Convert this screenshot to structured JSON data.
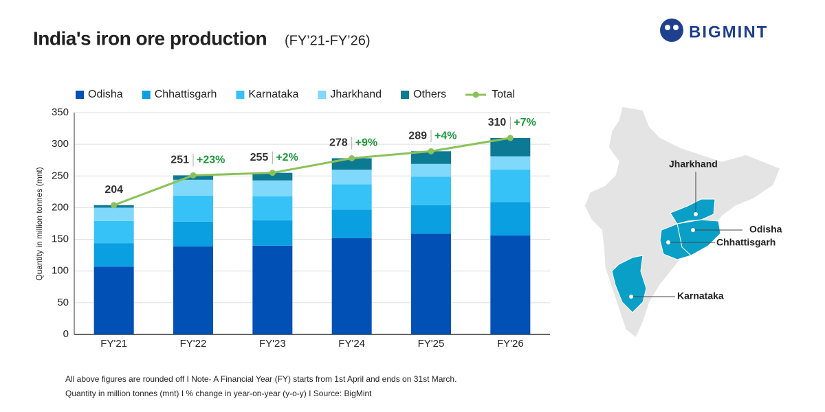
{
  "chart_data": {
    "type": "bar",
    "stacked": true,
    "title": "India's iron ore production",
    "subtitle": "(FY’21-FY’26)",
    "y_label": "Quantity in million tonnes (mnt)",
    "categories": [
      "FY'21",
      "FY'22",
      "FY'23",
      "FY'24",
      "FY'25",
      "FY'26"
    ],
    "series": [
      {
        "name": "Odisha",
        "color": "#0050b5",
        "values": [
          107,
          139,
          140,
          152,
          159,
          156
        ]
      },
      {
        "name": "Chhattisgarh",
        "color": "#0a9fe0",
        "values": [
          37,
          39,
          40,
          45,
          45,
          53
        ]
      },
      {
        "name": "Karnataka",
        "color": "#37c2f7",
        "values": [
          35,
          41,
          38,
          40,
          45,
          51
        ]
      },
      {
        "name": "Jharkhand",
        "color": "#80d8fa",
        "values": [
          21,
          25,
          25,
          23,
          20,
          21
        ]
      },
      {
        "name": "Others",
        "color": "#0d7a93",
        "values": [
          4,
          7,
          12,
          18,
          20,
          29
        ]
      },
      {
        "name": "Total",
        "color": "#8bc15a",
        "type": "line",
        "values": [
          204,
          251,
          255,
          278,
          289,
          310
        ]
      }
    ],
    "yoy_labels": [
      null,
      "+23%",
      "+2%",
      "+9%",
      "+4%",
      "+7%"
    ],
    "ylim": [
      0,
      350
    ],
    "yticks": [
      0,
      50,
      100,
      150,
      200,
      250,
      300,
      350
    ],
    "grid": true,
    "legend": "top",
    "logo": "BIGMINT",
    "map_labels": [
      "Jharkhand",
      "Odisha",
      "Chhattisgarh",
      "Karnataka"
    ],
    "footnotes": [
      "All above figures are rounded off  I  Note- A Financial Year (FY) starts from 1st April and ends on 31st March.",
      "Quantity in million tonnes (mnt)  I  % change in year-on-year (y-o-y)  I  Source: BigMint"
    ]
  }
}
